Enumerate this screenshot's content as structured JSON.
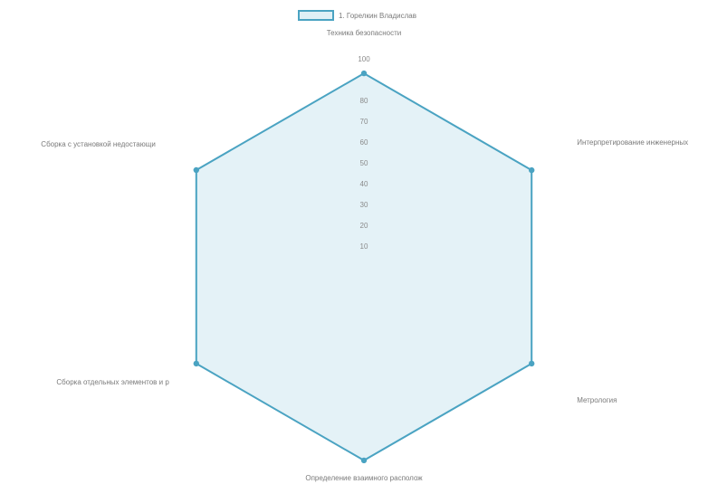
{
  "chart_data": {
    "type": "radar",
    "axes": [
      "Техника безопасности",
      "Интерпретирование инженерных",
      "Метрология",
      "Определение взаимного располож",
      "Сборка отдельных элементов и р",
      "Сборка с установкой недостающи"
    ],
    "ticks": [
      10,
      20,
      30,
      40,
      50,
      60,
      70,
      80,
      100
    ],
    "rlim": [
      0,
      100
    ],
    "series": [
      {
        "name": "1. Горелкин Владислав",
        "values": [
          93,
          93,
          93,
          93,
          93,
          93
        ]
      }
    ],
    "legend_position": "top",
    "grid": false,
    "colors": {
      "stroke": "#4aa3c2",
      "fill": "#dff0f6",
      "point": "#4aa3c2"
    }
  }
}
